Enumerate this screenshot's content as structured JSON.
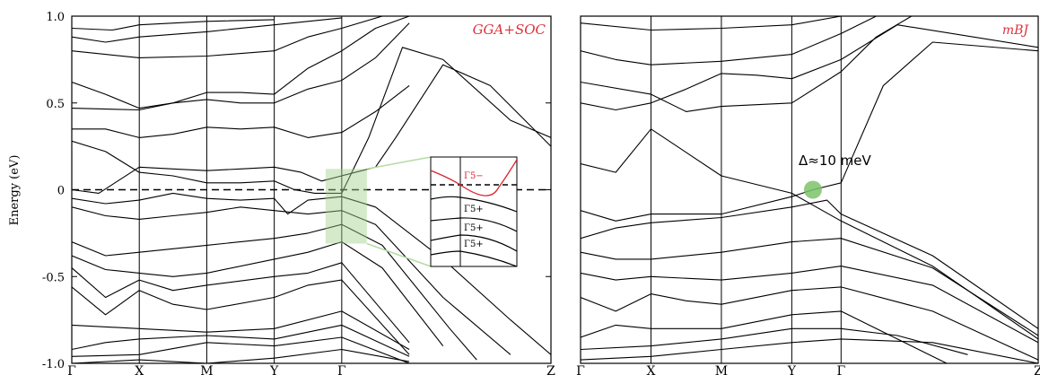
{
  "chart_data": [
    {
      "type": "line",
      "panel": "left",
      "label": "GGA+SOC",
      "ylabel": "Energy (eV)",
      "ylim": [
        -1.0,
        1.0
      ],
      "yticks": [
        "1.0",
        "0.5",
        "0",
        "-0.5",
        "-1.0"
      ],
      "ytick_values": [
        1.0,
        0.5,
        0,
        -0.5,
        -1.0
      ],
      "kpath": [
        "Γ",
        "X",
        "M",
        "Y",
        "Γ",
        "Z"
      ],
      "kpath_positions": [
        0,
        1,
        2,
        3,
        4,
        7.1
      ],
      "fermi_level": 0,
      "bands": [
        [
          [
            0,
            -1.0
          ],
          [
            1,
            -0.98
          ],
          [
            2,
            -1.0
          ],
          [
            3,
            -0.97
          ],
          [
            4,
            -0.92
          ],
          [
            5,
            -0.99
          ]
        ],
        [
          [
            0,
            -0.96
          ],
          [
            1,
            -0.95
          ],
          [
            2,
            -0.88
          ],
          [
            3,
            -0.9
          ],
          [
            4,
            -0.85
          ],
          [
            5,
            -1.0
          ]
        ],
        [
          [
            0,
            -0.92
          ],
          [
            0.5,
            -0.88
          ],
          [
            1,
            -0.86
          ],
          [
            2,
            -0.84
          ],
          [
            3,
            -0.86
          ],
          [
            4,
            -0.78
          ],
          [
            5,
            -0.96
          ]
        ],
        [
          [
            0,
            -0.78
          ],
          [
            1,
            -0.8
          ],
          [
            2,
            -0.82
          ],
          [
            3,
            -0.8
          ],
          [
            4,
            -0.7
          ],
          [
            5,
            -0.92
          ]
        ],
        [
          [
            0,
            -0.56
          ],
          [
            0.5,
            -0.72
          ],
          [
            1,
            -0.58
          ],
          [
            1.5,
            -0.66
          ],
          [
            2,
            -0.69
          ],
          [
            3,
            -0.62
          ],
          [
            3.5,
            -0.55
          ],
          [
            4,
            -0.52
          ],
          [
            5,
            -0.95
          ]
        ],
        [
          [
            0,
            -0.45
          ],
          [
            0.5,
            -0.62
          ],
          [
            1,
            -0.52
          ],
          [
            1.5,
            -0.58
          ],
          [
            2,
            -0.55
          ],
          [
            3,
            -0.5
          ],
          [
            3.5,
            -0.48
          ],
          [
            4,
            -0.42
          ],
          [
            5,
            -0.88
          ]
        ],
        [
          [
            0,
            -0.38
          ],
          [
            0.5,
            -0.46
          ],
          [
            1,
            -0.48
          ],
          [
            1.5,
            -0.5
          ],
          [
            2,
            -0.48
          ],
          [
            3,
            -0.4
          ],
          [
            3.5,
            -0.36
          ],
          [
            4,
            -0.3
          ],
          [
            4.6,
            -0.45
          ],
          [
            5.5,
            -0.9
          ]
        ],
        [
          [
            0,
            -0.3
          ],
          [
            0.5,
            -0.38
          ],
          [
            1,
            -0.36
          ],
          [
            1.5,
            -0.34
          ],
          [
            2,
            -0.32
          ],
          [
            3,
            -0.28
          ],
          [
            3.5,
            -0.25
          ],
          [
            4,
            -0.2
          ],
          [
            4.6,
            -0.32
          ],
          [
            5.6,
            -0.8
          ],
          [
            6,
            -0.98
          ]
        ],
        [
          [
            0,
            -0.1
          ],
          [
            0.5,
            -0.15
          ],
          [
            1,
            -0.17
          ],
          [
            1.5,
            -0.15
          ],
          [
            2,
            -0.13
          ],
          [
            2.5,
            -0.1
          ],
          [
            3,
            -0.12
          ],
          [
            3.5,
            -0.14
          ],
          [
            4,
            -0.12
          ],
          [
            4.5,
            -0.2
          ],
          [
            5.5,
            -0.62
          ],
          [
            6.5,
            -0.95
          ]
        ],
        [
          [
            0,
            -0.05
          ],
          [
            0.5,
            -0.08
          ],
          [
            1,
            -0.06
          ],
          [
            1.5,
            -0.02
          ],
          [
            2,
            -0.05
          ],
          [
            2.5,
            -0.06
          ],
          [
            3,
            -0.05
          ],
          [
            3.2,
            -0.14
          ],
          [
            3.5,
            -0.06
          ],
          [
            4,
            -0.04
          ],
          [
            4.5,
            -0.1
          ],
          [
            5.5,
            -0.4
          ],
          [
            6.5,
            -0.75
          ],
          [
            7.1,
            -0.95
          ]
        ],
        [
          [
            0,
            0
          ],
          [
            0.4,
            -0.02
          ],
          [
            1,
            0.13
          ],
          [
            1.5,
            0.12
          ],
          [
            2,
            0.11
          ],
          [
            2.5,
            0.12
          ],
          [
            3,
            0.13
          ],
          [
            3.4,
            0.1
          ],
          [
            3.7,
            0.05
          ],
          [
            4,
            0.08
          ],
          [
            4.5,
            0.13
          ],
          [
            4.8,
            0.3
          ],
          [
            5.5,
            0.72
          ],
          [
            6.2,
            0.6
          ],
          [
            7.1,
            0.25
          ]
        ],
        [
          [
            0,
            0.28
          ],
          [
            0.5,
            0.22
          ],
          [
            1,
            0.1
          ],
          [
            1.5,
            0.08
          ],
          [
            2,
            0.04
          ],
          [
            2.5,
            0.04
          ],
          [
            3,
            0.05
          ],
          [
            3.3,
            0.0
          ],
          [
            3.6,
            -0.02
          ],
          [
            4,
            -0.02
          ],
          [
            4.4,
            0.3
          ],
          [
            4.9,
            0.82
          ],
          [
            5.5,
            0.75
          ],
          [
            6.5,
            0.4
          ],
          [
            7.1,
            0.3
          ]
        ],
        [
          [
            0,
            0.35
          ],
          [
            0.5,
            0.35
          ],
          [
            1,
            0.3
          ],
          [
            1.5,
            0.32
          ],
          [
            2,
            0.36
          ],
          [
            2.5,
            0.35
          ],
          [
            3,
            0.36
          ],
          [
            3.5,
            0.3
          ],
          [
            4,
            0.33
          ],
          [
            4.5,
            0.45
          ],
          [
            5,
            0.6
          ]
        ],
        [
          [
            0,
            0.47
          ],
          [
            1,
            0.46
          ],
          [
            1.5,
            0.5
          ],
          [
            2,
            0.52
          ],
          [
            2.5,
            0.5
          ],
          [
            3,
            0.5
          ],
          [
            3.5,
            0.58
          ],
          [
            4,
            0.63
          ],
          [
            4.5,
            0.76
          ],
          [
            5,
            0.96
          ]
        ],
        [
          [
            0,
            0.62
          ],
          [
            0.5,
            0.55
          ],
          [
            1,
            0.47
          ],
          [
            1.5,
            0.5
          ],
          [
            2,
            0.56
          ],
          [
            2.5,
            0.56
          ],
          [
            3,
            0.55
          ],
          [
            3.5,
            0.7
          ],
          [
            4,
            0.8
          ],
          [
            4.5,
            0.93
          ],
          [
            5,
            1.0
          ]
        ],
        [
          [
            0,
            0.8
          ],
          [
            0.5,
            0.78
          ],
          [
            1,
            0.76
          ],
          [
            2,
            0.77
          ],
          [
            3,
            0.8
          ],
          [
            3.5,
            0.88
          ],
          [
            4,
            0.93
          ],
          [
            4.6,
            1.0
          ]
        ],
        [
          [
            0,
            0.88
          ],
          [
            0.5,
            0.85
          ],
          [
            1,
            0.88
          ],
          [
            2,
            0.91
          ],
          [
            3,
            0.95
          ],
          [
            3.5,
            0.97
          ],
          [
            4,
            0.99
          ]
        ],
        [
          [
            0,
            0.93
          ],
          [
            0.6,
            0.92
          ],
          [
            1,
            0.95
          ],
          [
            2,
            0.97
          ],
          [
            3,
            0.98
          ]
        ]
      ],
      "inset_labels": [
        "Γ5−",
        "Γ5+",
        "Γ5+",
        "Γ5+"
      ]
    },
    {
      "type": "line",
      "panel": "right",
      "label": "mBJ",
      "annotation": "Δ≈10 meV",
      "ylim": [
        -1.0,
        1.0
      ],
      "kpath": [
        "Γ",
        "X",
        "M",
        "Y",
        "Γ",
        "Z"
      ],
      "kpath_positions": [
        0,
        1,
        2,
        3,
        3.7,
        6.5
      ],
      "bands": [
        [
          [
            0,
            -0.98
          ],
          [
            1,
            -0.96
          ],
          [
            2,
            -0.92
          ],
          [
            3,
            -0.88
          ],
          [
            3.7,
            -0.86
          ],
          [
            5,
            -0.88
          ],
          [
            6.5,
            -1.0
          ]
        ],
        [
          [
            0,
            -0.92
          ],
          [
            1,
            -0.9
          ],
          [
            2,
            -0.86
          ],
          [
            3,
            -0.8
          ],
          [
            3.7,
            -0.8
          ],
          [
            4.5,
            -0.84
          ],
          [
            5.5,
            -0.95
          ]
        ],
        [
          [
            0,
            -0.85
          ],
          [
            0.5,
            -0.78
          ],
          [
            1,
            -0.8
          ],
          [
            2,
            -0.8
          ],
          [
            3,
            -0.72
          ],
          [
            3.7,
            -0.7
          ],
          [
            4.8,
            -0.92
          ],
          [
            5.2,
            -1.0
          ]
        ],
        [
          [
            0,
            -0.62
          ],
          [
            0.5,
            -0.7
          ],
          [
            1,
            -0.6
          ],
          [
            1.5,
            -0.64
          ],
          [
            2,
            -0.66
          ],
          [
            3,
            -0.58
          ],
          [
            3.7,
            -0.56
          ],
          [
            5,
            -0.7
          ],
          [
            6.5,
            -0.98
          ]
        ],
        [
          [
            0,
            -0.48
          ],
          [
            0.5,
            -0.52
          ],
          [
            1,
            -0.5
          ],
          [
            2,
            -0.52
          ],
          [
            3,
            -0.48
          ],
          [
            3.7,
            -0.44
          ],
          [
            5,
            -0.55
          ],
          [
            6.5,
            -0.88
          ]
        ],
        [
          [
            0,
            -0.36
          ],
          [
            0.5,
            -0.4
          ],
          [
            1,
            -0.4
          ],
          [
            2,
            -0.36
          ],
          [
            3,
            -0.3
          ],
          [
            3.7,
            -0.28
          ],
          [
            5,
            -0.45
          ],
          [
            6.5,
            -0.84
          ]
        ],
        [
          [
            0,
            -0.28
          ],
          [
            0.5,
            -0.22
          ],
          [
            1,
            -0.19
          ],
          [
            2,
            -0.16
          ],
          [
            3,
            -0.1
          ],
          [
            3.5,
            -0.06
          ],
          [
            3.7,
            -0.14
          ],
          [
            5,
            -0.38
          ],
          [
            6.5,
            -0.8
          ]
        ],
        [
          [
            0,
            -0.12
          ],
          [
            0.5,
            -0.18
          ],
          [
            1,
            -0.14
          ],
          [
            2,
            -0.14
          ],
          [
            3,
            -0.04
          ],
          [
            3.3,
            0.0
          ],
          [
            3.7,
            0.04
          ],
          [
            4.3,
            0.6
          ],
          [
            5,
            0.85
          ],
          [
            6.5,
            0.8
          ]
        ],
        [
          [
            0,
            0.15
          ],
          [
            0.5,
            0.1
          ],
          [
            1,
            0.35
          ],
          [
            2,
            0.08
          ],
          [
            3,
            -0.02
          ],
          [
            3.7,
            -0.18
          ],
          [
            5,
            -0.44
          ],
          [
            6.5,
            -0.86
          ]
        ],
        [
          [
            0,
            0.5
          ],
          [
            0.5,
            0.46
          ],
          [
            1,
            0.5
          ],
          [
            1.5,
            0.58
          ],
          [
            2,
            0.67
          ],
          [
            2.5,
            0.66
          ],
          [
            3,
            0.64
          ],
          [
            3.7,
            0.75
          ],
          [
            4.5,
            0.95
          ],
          [
            6.5,
            0.82
          ]
        ],
        [
          [
            0,
            0.62
          ],
          [
            1,
            0.55
          ],
          [
            1.5,
            0.45
          ],
          [
            2,
            0.48
          ],
          [
            3,
            0.5
          ],
          [
            3.7,
            0.68
          ],
          [
            4.2,
            0.88
          ],
          [
            4.7,
            1.0
          ]
        ],
        [
          [
            0,
            0.8
          ],
          [
            0.5,
            0.75
          ],
          [
            1,
            0.72
          ],
          [
            2,
            0.74
          ],
          [
            3,
            0.78
          ],
          [
            3.7,
            0.9
          ],
          [
            4.2,
            1.0
          ]
        ],
        [
          [
            0,
            0.96
          ],
          [
            1,
            0.92
          ],
          [
            2,
            0.93
          ],
          [
            3,
            0.95
          ],
          [
            3.7,
            1.0
          ]
        ]
      ]
    }
  ]
}
